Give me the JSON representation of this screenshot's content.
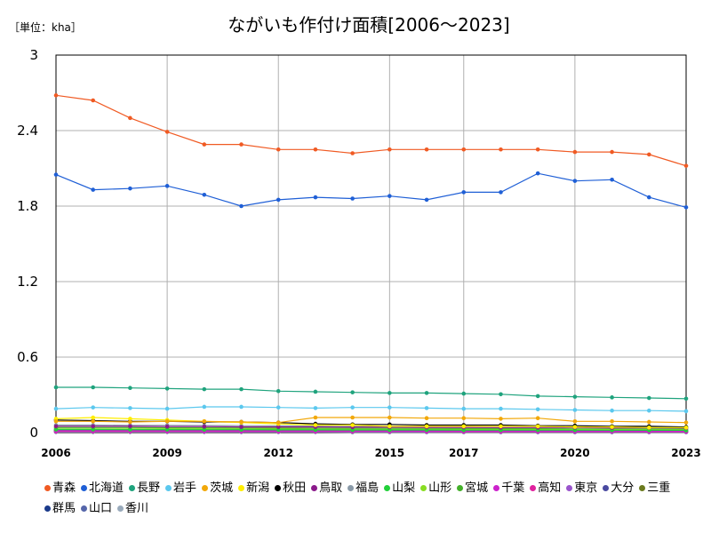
{
  "chart_data": {
    "type": "line",
    "title": "ながいも作付け面積[2006～2023]",
    "unit_label": "［単位：kha］",
    "ylim": [
      0,
      3
    ],
    "yticks": [
      "0",
      "0.6",
      "1.2",
      "1.8",
      "2.4",
      "3"
    ],
    "ytick_values": [
      0,
      0.6,
      1.2,
      1.8,
      2.4,
      3
    ],
    "xlim": [
      2006,
      2023
    ],
    "xticks": [
      "2006",
      "2009",
      "2012",
      "2015",
      "2017",
      "2020",
      "2023"
    ],
    "xtick_values": [
      2006,
      2009,
      2012,
      2015,
      2017,
      2020,
      2023
    ],
    "x": [
      2006,
      2007,
      2008,
      2009,
      2010,
      2011,
      2012,
      2013,
      2014,
      2015,
      2016,
      2017,
      2018,
      2019,
      2020,
      2021,
      2022,
      2023
    ],
    "grid": true,
    "legend_position": "bottom",
    "series": [
      {
        "name": "青森",
        "color": "#f05a23",
        "values": [
          2.68,
          2.64,
          2.5,
          2.39,
          2.29,
          2.29,
          2.25,
          2.25,
          2.22,
          2.25,
          2.25,
          2.25,
          2.25,
          2.25,
          2.23,
          2.23,
          2.21,
          2.12
        ]
      },
      {
        "name": "北海道",
        "color": "#1f5fd6",
        "values": [
          2.05,
          1.93,
          1.94,
          1.96,
          1.89,
          1.8,
          1.85,
          1.87,
          1.86,
          1.88,
          1.85,
          1.91,
          1.91,
          2.06,
          2.0,
          2.01,
          1.87,
          1.79
        ]
      },
      {
        "name": "長野",
        "color": "#1fa37d",
        "values": [
          0.36,
          0.36,
          0.355,
          0.35,
          0.345,
          0.345,
          0.33,
          0.325,
          0.32,
          0.315,
          0.315,
          0.31,
          0.305,
          0.29,
          0.285,
          0.28,
          0.275,
          0.27
        ]
      },
      {
        "name": "岩手",
        "color": "#5bc8ee",
        "values": [
          0.19,
          0.2,
          0.195,
          0.19,
          0.205,
          0.205,
          0.2,
          0.195,
          0.2,
          0.2,
          0.195,
          0.19,
          0.19,
          0.185,
          0.18,
          0.175,
          0.175,
          0.17
        ]
      },
      {
        "name": "茨城",
        "color": "#f2a80a",
        "values": [
          0.09,
          0.09,
          0.085,
          0.09,
          0.09,
          0.085,
          0.08,
          0.12,
          0.12,
          0.12,
          0.115,
          0.115,
          0.11,
          0.115,
          0.09,
          0.09,
          0.085,
          0.08
        ]
      },
      {
        "name": "新潟",
        "color": "#ffee00",
        "values": [
          0.11,
          0.12,
          0.11,
          0.1,
          0.09,
          0.08,
          0.07,
          0.06,
          0.06,
          0.05,
          0.05,
          0.05,
          0.05,
          0.05,
          0.045,
          0.045,
          0.04,
          0.04
        ]
      },
      {
        "name": "秋田",
        "color": "#000000",
        "values": [
          0.1,
          0.095,
          0.09,
          0.09,
          0.085,
          0.085,
          0.08,
          0.07,
          0.065,
          0.065,
          0.06,
          0.06,
          0.06,
          0.055,
          0.055,
          0.05,
          0.05,
          0.045
        ]
      },
      {
        "name": "鳥取",
        "color": "#8b1a8b",
        "values": [
          0.05,
          0.05,
          0.05,
          0.048,
          0.048,
          0.045,
          0.045,
          0.045,
          0.043,
          0.043,
          0.042,
          0.042,
          0.04,
          0.04,
          0.04,
          0.038,
          0.038,
          0.036
        ]
      },
      {
        "name": "福島",
        "color": "#8a9aa8",
        "values": [
          0.06,
          0.06,
          0.058,
          0.058,
          0.056,
          0.055,
          0.054,
          0.052,
          0.05,
          0.05,
          0.05,
          0.05,
          0.048,
          0.048,
          0.046,
          0.045,
          0.044,
          0.042
        ]
      },
      {
        "name": "山梨",
        "color": "#22d03a",
        "values": [
          0.025,
          0.025,
          0.024,
          0.024,
          0.023,
          0.023,
          0.022,
          0.022,
          0.021,
          0.021,
          0.021,
          0.02,
          0.02,
          0.02,
          0.02,
          0.019,
          0.019,
          0.018
        ]
      },
      {
        "name": "山形",
        "color": "#88dd22",
        "values": [
          0.03,
          0.03,
          0.03,
          0.029,
          0.029,
          0.028,
          0.028,
          0.027,
          0.027,
          0.026,
          0.026,
          0.025,
          0.025,
          0.025,
          0.024,
          0.024,
          0.023,
          0.023
        ]
      },
      {
        "name": "宮城",
        "color": "#44b02a",
        "values": [
          0.04,
          0.04,
          0.04,
          0.038,
          0.038,
          0.037,
          0.036,
          0.035,
          0.034,
          0.034,
          0.033,
          0.032,
          0.032,
          0.031,
          0.03,
          0.03,
          0.029,
          0.028
        ]
      },
      {
        "name": "千葉",
        "color": "#cc22cc",
        "values": [
          0.015,
          0.015,
          0.015,
          0.014,
          0.014,
          0.014,
          0.013,
          0.013,
          0.013,
          0.012,
          0.012,
          0.012,
          0.012,
          0.011,
          0.011,
          0.011,
          0.01,
          0.01
        ]
      },
      {
        "name": "高知",
        "color": "#e0229e",
        "values": [
          0.01,
          0.01,
          0.01,
          0.01,
          0.01,
          0.01,
          0.009,
          0.009,
          0.009,
          0.009,
          0.009,
          0.008,
          0.008,
          0.008,
          0.008,
          0.008,
          0.007,
          0.007
        ]
      },
      {
        "name": "東京",
        "color": "#9a55cc",
        "values": [
          0.008,
          0.008,
          0.008,
          0.008,
          0.007,
          0.007,
          0.007,
          0.007,
          0.007,
          0.007,
          0.006,
          0.006,
          0.006,
          0.006,
          0.006,
          0.006,
          0.006,
          0.005
        ]
      },
      {
        "name": "大分",
        "color": "#4a4aa0",
        "values": [
          0.02,
          0.02,
          0.019,
          0.019,
          0.018,
          0.018,
          0.018,
          0.017,
          0.017,
          0.016,
          0.016,
          0.016,
          0.015,
          0.015,
          0.015,
          0.014,
          0.014,
          0.014
        ]
      },
      {
        "name": "三重",
        "color": "#6b7a1e",
        "values": [
          0.012,
          0.012,
          0.012,
          0.011,
          0.011,
          0.011,
          0.011,
          0.01,
          0.01,
          0.01,
          0.01,
          0.01,
          0.009,
          0.009,
          0.009,
          0.009,
          0.009,
          0.008
        ]
      },
      {
        "name": "群馬",
        "color": "#1a3a8a",
        "values": [
          0.018,
          0.018,
          0.017,
          0.017,
          0.017,
          0.016,
          0.016,
          0.016,
          0.015,
          0.015,
          0.015,
          0.014,
          0.014,
          0.014,
          0.013,
          0.013,
          0.013,
          0.012
        ]
      },
      {
        "name": "山口",
        "color": "#5566aa",
        "values": [
          0.006,
          0.006,
          0.006,
          0.006,
          0.006,
          0.005,
          0.005,
          0.005,
          0.005,
          0.005,
          0.005,
          0.005,
          0.005,
          0.004,
          0.004,
          0.004,
          0.004,
          0.004
        ]
      },
      {
        "name": "香川",
        "color": "#99aabb",
        "values": [
          0.004,
          0.004,
          0.004,
          0.004,
          0.004,
          0.004,
          0.004,
          0.004,
          0.003,
          0.003,
          0.003,
          0.003,
          0.003,
          0.003,
          0.003,
          0.003,
          0.003,
          0.003
        ]
      }
    ]
  }
}
